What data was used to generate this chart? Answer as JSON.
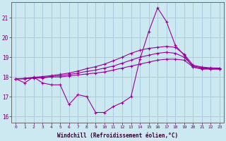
{
  "xlabel": "Windchill (Refroidissement éolien,°C)",
  "background_color": "#cce8f0",
  "grid_color": "#aaccdd",
  "line_color": "#990099",
  "x_ticks": [
    0,
    1,
    2,
    3,
    4,
    5,
    6,
    7,
    8,
    9,
    10,
    11,
    12,
    13,
    14,
    15,
    16,
    17,
    18,
    19,
    20,
    21,
    22,
    23
  ],
  "ylim": [
    15.7,
    21.8
  ],
  "y_ticks": [
    16,
    17,
    18,
    19,
    20,
    21
  ],
  "line1_y": [
    17.9,
    17.7,
    18.0,
    17.7,
    17.6,
    17.6,
    16.6,
    17.1,
    17.0,
    16.2,
    16.2,
    16.5,
    16.7,
    17.0,
    18.9,
    20.3,
    21.5,
    20.8,
    19.6,
    19.1,
    18.5,
    18.4,
    18.4,
    18.4
  ],
  "line2_y": [
    17.9,
    17.9,
    17.95,
    17.95,
    18.0,
    18.0,
    18.05,
    18.1,
    18.15,
    18.2,
    18.25,
    18.35,
    18.45,
    18.55,
    18.65,
    18.75,
    18.85,
    18.9,
    18.9,
    18.85,
    18.5,
    18.42,
    18.4,
    18.4
  ],
  "line3_y": [
    17.9,
    17.92,
    17.95,
    17.98,
    18.02,
    18.07,
    18.12,
    18.2,
    18.28,
    18.35,
    18.45,
    18.55,
    18.7,
    18.85,
    19.0,
    19.1,
    19.2,
    19.25,
    19.2,
    19.0,
    18.55,
    18.47,
    18.43,
    18.42
  ],
  "line4_y": [
    17.9,
    17.93,
    17.98,
    18.02,
    18.07,
    18.13,
    18.2,
    18.3,
    18.42,
    18.52,
    18.65,
    18.82,
    19.0,
    19.2,
    19.35,
    19.45,
    19.5,
    19.55,
    19.5,
    19.15,
    18.6,
    18.5,
    18.46,
    18.45
  ]
}
